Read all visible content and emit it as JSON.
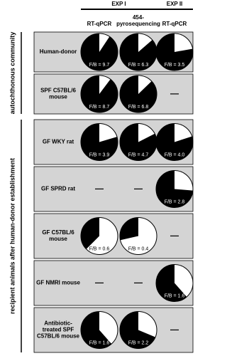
{
  "experiments": [
    {
      "label": "EXP I",
      "columns": [
        [
          "RT-qPCR"
        ],
        [
          "454-",
          "pyrosequencing"
        ]
      ]
    },
    {
      "label": "EXP II",
      "columns": [
        [
          "RT-qPCR"
        ]
      ]
    }
  ],
  "groups": [
    {
      "label": "autochthonous community",
      "rows": [
        {
          "label": [
            "Human-donor"
          ],
          "cells": [
            {
              "fb": 9.7,
              "label": "F/B = 9.7"
            },
            {
              "fb": 6.3,
              "label": "F/B = 6.3"
            },
            {
              "fb": 3.5,
              "label": "F/B = 3.5"
            }
          ]
        },
        {
          "label": [
            "SPF C57BL/6",
            "mouse"
          ],
          "cells": [
            {
              "fb": 8.7,
              "label": "F/B = 8.7"
            },
            {
              "fb": 6.8,
              "label": "F/B = 6.8"
            },
            {
              "text": "—"
            }
          ]
        }
      ]
    },
    {
      "label": "recipient animals after human-donor establishment",
      "rows": [
        {
          "label": [
            "GF WKY rat"
          ],
          "cells": [
            {
              "fb": 3.9,
              "label": "F/B = 3.9"
            },
            {
              "fb": 4.7,
              "label": "F/B = 4.7"
            },
            {
              "fb": 4.0,
              "label": "F/B = 4.0"
            }
          ]
        },
        {
          "label": [
            "GF SPRD rat"
          ],
          "cells": [
            {
              "text": "—"
            },
            {
              "text": "—"
            },
            {
              "fb": 2.8,
              "label": "F/B = 2.8"
            }
          ]
        },
        {
          "label": [
            "GF C57BL/6",
            "mouse"
          ],
          "cells": [
            {
              "fb": 0.6,
              "label": "F/B = 0.6"
            },
            {
              "fb": 0.4,
              "label": "F/B = 0.4"
            },
            {
              "text": "—"
            }
          ]
        },
        {
          "label": [
            "GF NMRI mouse"
          ],
          "cells": [
            {
              "text": "—"
            },
            {
              "text": "—"
            },
            {
              "fb": 1.6,
              "label": "F/B = 1.6"
            }
          ]
        },
        {
          "label": [
            "Antibiotic-",
            "treated SPF",
            "C57BL/6 mouse"
          ],
          "cells": [
            {
              "fb": 1.6,
              "label": "F/B = 1.6"
            },
            {
              "fb": 2.2,
              "label": "F/B = 2.2"
            },
            {
              "text": "—"
            }
          ]
        }
      ]
    }
  ]
}
